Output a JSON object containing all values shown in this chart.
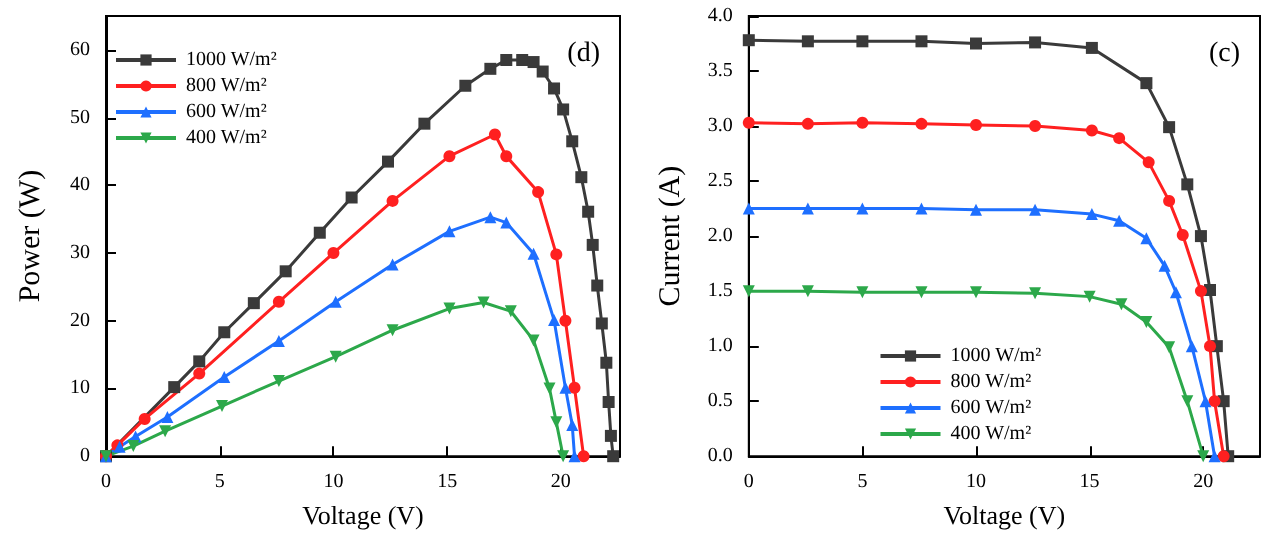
{
  "chart_data": [
    {
      "type": "line",
      "xlabel": "Voltage (V)",
      "ylabel": "Power (W)",
      "annotations": [
        "(d)"
      ],
      "xlim": [
        0,
        22.6
      ],
      "xticks": [
        0,
        5,
        10,
        15,
        20
      ],
      "ylim": [
        0,
        65
      ],
      "yticks": [
        0,
        10,
        20,
        30,
        40,
        50,
        60
      ],
      "grid": false,
      "legend": "top left",
      "series": [
        {
          "name": "1000 W/m²",
          "color": "#3a3a3a",
          "marker": "square",
          "x": [
            0,
            3.0,
            4.1,
            5.2,
            6.5,
            7.9,
            9.4,
            10.8,
            12.4,
            14.0,
            15.8,
            16.9,
            17.6,
            18.3,
            18.8,
            19.2,
            19.7,
            20.1,
            20.5,
            20.9,
            21.2,
            21.4,
            21.6,
            21.8,
            22.0,
            22.1,
            22.2,
            22.3
          ],
          "values": [
            0,
            10.2,
            14,
            18.3,
            22.6,
            27.3,
            33,
            38.2,
            43.5,
            49.1,
            54.7,
            57.2,
            58.5,
            58.5,
            58.2,
            56.8,
            54.3,
            51.2,
            46.5,
            41.2,
            36.1,
            31.2,
            25.2,
            19.6,
            13.8,
            8,
            3,
            0
          ]
        },
        {
          "name": "800 W/m²",
          "color": "#ff2020",
          "marker": "circle",
          "x": [
            0,
            0.5,
            1.7,
            4.1,
            7.6,
            10.0,
            12.6,
            15.1,
            17.1,
            17.6,
            19.0,
            19.8,
            20.2,
            20.6,
            21.0
          ],
          "values": [
            0,
            1.6,
            5.5,
            12.2,
            22.8,
            30,
            37.7,
            44.3,
            47.5,
            44.3,
            39,
            29.8,
            20,
            10.1,
            0
          ]
        },
        {
          "name": "600 W/m²",
          "color": "#1e6fff",
          "marker": "triangle",
          "x": [
            0,
            0.6,
            1.3,
            2.7,
            5.2,
            7.6,
            10.1,
            12.6,
            15.1,
            16.9,
            17.6,
            18.8,
            19.7,
            20.2,
            20.5,
            20.6
          ],
          "values": [
            0,
            1.4,
            2.9,
            5.8,
            11.7,
            17,
            22.8,
            28.3,
            33.2,
            35.3,
            34.5,
            29.9,
            20.1,
            10.1,
            4.6,
            0
          ]
        },
        {
          "name": "400 W/m²",
          "color": "#2ca84a",
          "marker": "triangle",
          "x": [
            0,
            1.2,
            2.6,
            5.1,
            7.6,
            10.1,
            12.6,
            15.1,
            16.6,
            17.8,
            18.8,
            19.5,
            19.8,
            20.1
          ],
          "values": [
            0,
            1.5,
            3.7,
            7.4,
            11.1,
            14.7,
            18.6,
            21.8,
            22.7,
            21.4,
            17.1,
            10,
            5,
            0
          ]
        }
      ]
    },
    {
      "type": "line",
      "xlabel": "Voltage (V)",
      "ylabel": "Current (A)",
      "annotations": [
        "(c)"
      ],
      "xlim": [
        0,
        22.5
      ],
      "xticks": [
        0,
        5,
        10,
        15,
        20
      ],
      "ylim": [
        0,
        4
      ],
      "yticks": [
        {
          "value": 0,
          "label": "0.0"
        },
        {
          "value": 0.5,
          "label": "0.5"
        },
        {
          "value": 1,
          "label": "1.0"
        },
        {
          "value": 1.5,
          "label": "1.5"
        },
        {
          "value": 2,
          "label": "2.0"
        },
        {
          "value": 2.5,
          "label": "2.5"
        },
        {
          "value": 3,
          "label": "3.0"
        },
        {
          "value": 3.5,
          "label": "3.5"
        },
        {
          "value": 4,
          "label": "4.0"
        }
      ],
      "grid": false,
      "legend": "bottom",
      "series": [
        {
          "name": "1000 W/m²",
          "color": "#3a3a3a",
          "marker": "square",
          "x": [
            0,
            2.6,
            5.0,
            7.6,
            10,
            12.6,
            15.1,
            17.5,
            18.5,
            19.3,
            19.9,
            20.3,
            20.6,
            20.9,
            21.1
          ],
          "values": [
            3.78,
            3.77,
            3.77,
            3.77,
            3.75,
            3.76,
            3.71,
            3.39,
            2.99,
            2.47,
            2.0,
            1.51,
            1.0,
            0.5,
            0
          ]
        },
        {
          "name": "800 W/m²",
          "color": "#ff2020",
          "marker": "circle",
          "x": [
            0,
            2.6,
            5,
            7.6,
            10,
            12.6,
            15.1,
            16.3,
            17.6,
            18.5,
            19.1,
            19.9,
            20.3,
            20.5,
            20.9
          ],
          "values": [
            3.03,
            3.02,
            3.03,
            3.02,
            3.01,
            3.0,
            2.96,
            2.89,
            2.67,
            2.32,
            2.01,
            1.5,
            1.0,
            0.5,
            0
          ]
        },
        {
          "name": "600 W/m²",
          "color": "#1e6fff",
          "marker": "triangle",
          "x": [
            0,
            2.6,
            5,
            7.6,
            10,
            12.6,
            15.1,
            16.3,
            17.5,
            18.3,
            18.8,
            19.5,
            20.1,
            20.5
          ],
          "values": [
            2.25,
            2.25,
            2.25,
            2.25,
            2.24,
            2.24,
            2.2,
            2.14,
            1.98,
            1.73,
            1.49,
            1.0,
            0.5,
            0
          ]
        },
        {
          "name": "400 W/m²",
          "color": "#2ca84a",
          "marker": "triangle",
          "x": [
            0,
            2.6,
            5,
            7.6,
            10,
            12.6,
            15,
            16.4,
            17.5,
            18.5,
            19.3,
            20.0
          ],
          "values": [
            1.5,
            1.5,
            1.49,
            1.49,
            1.49,
            1.48,
            1.45,
            1.38,
            1.22,
            0.99,
            0.5,
            0
          ]
        }
      ]
    }
  ]
}
